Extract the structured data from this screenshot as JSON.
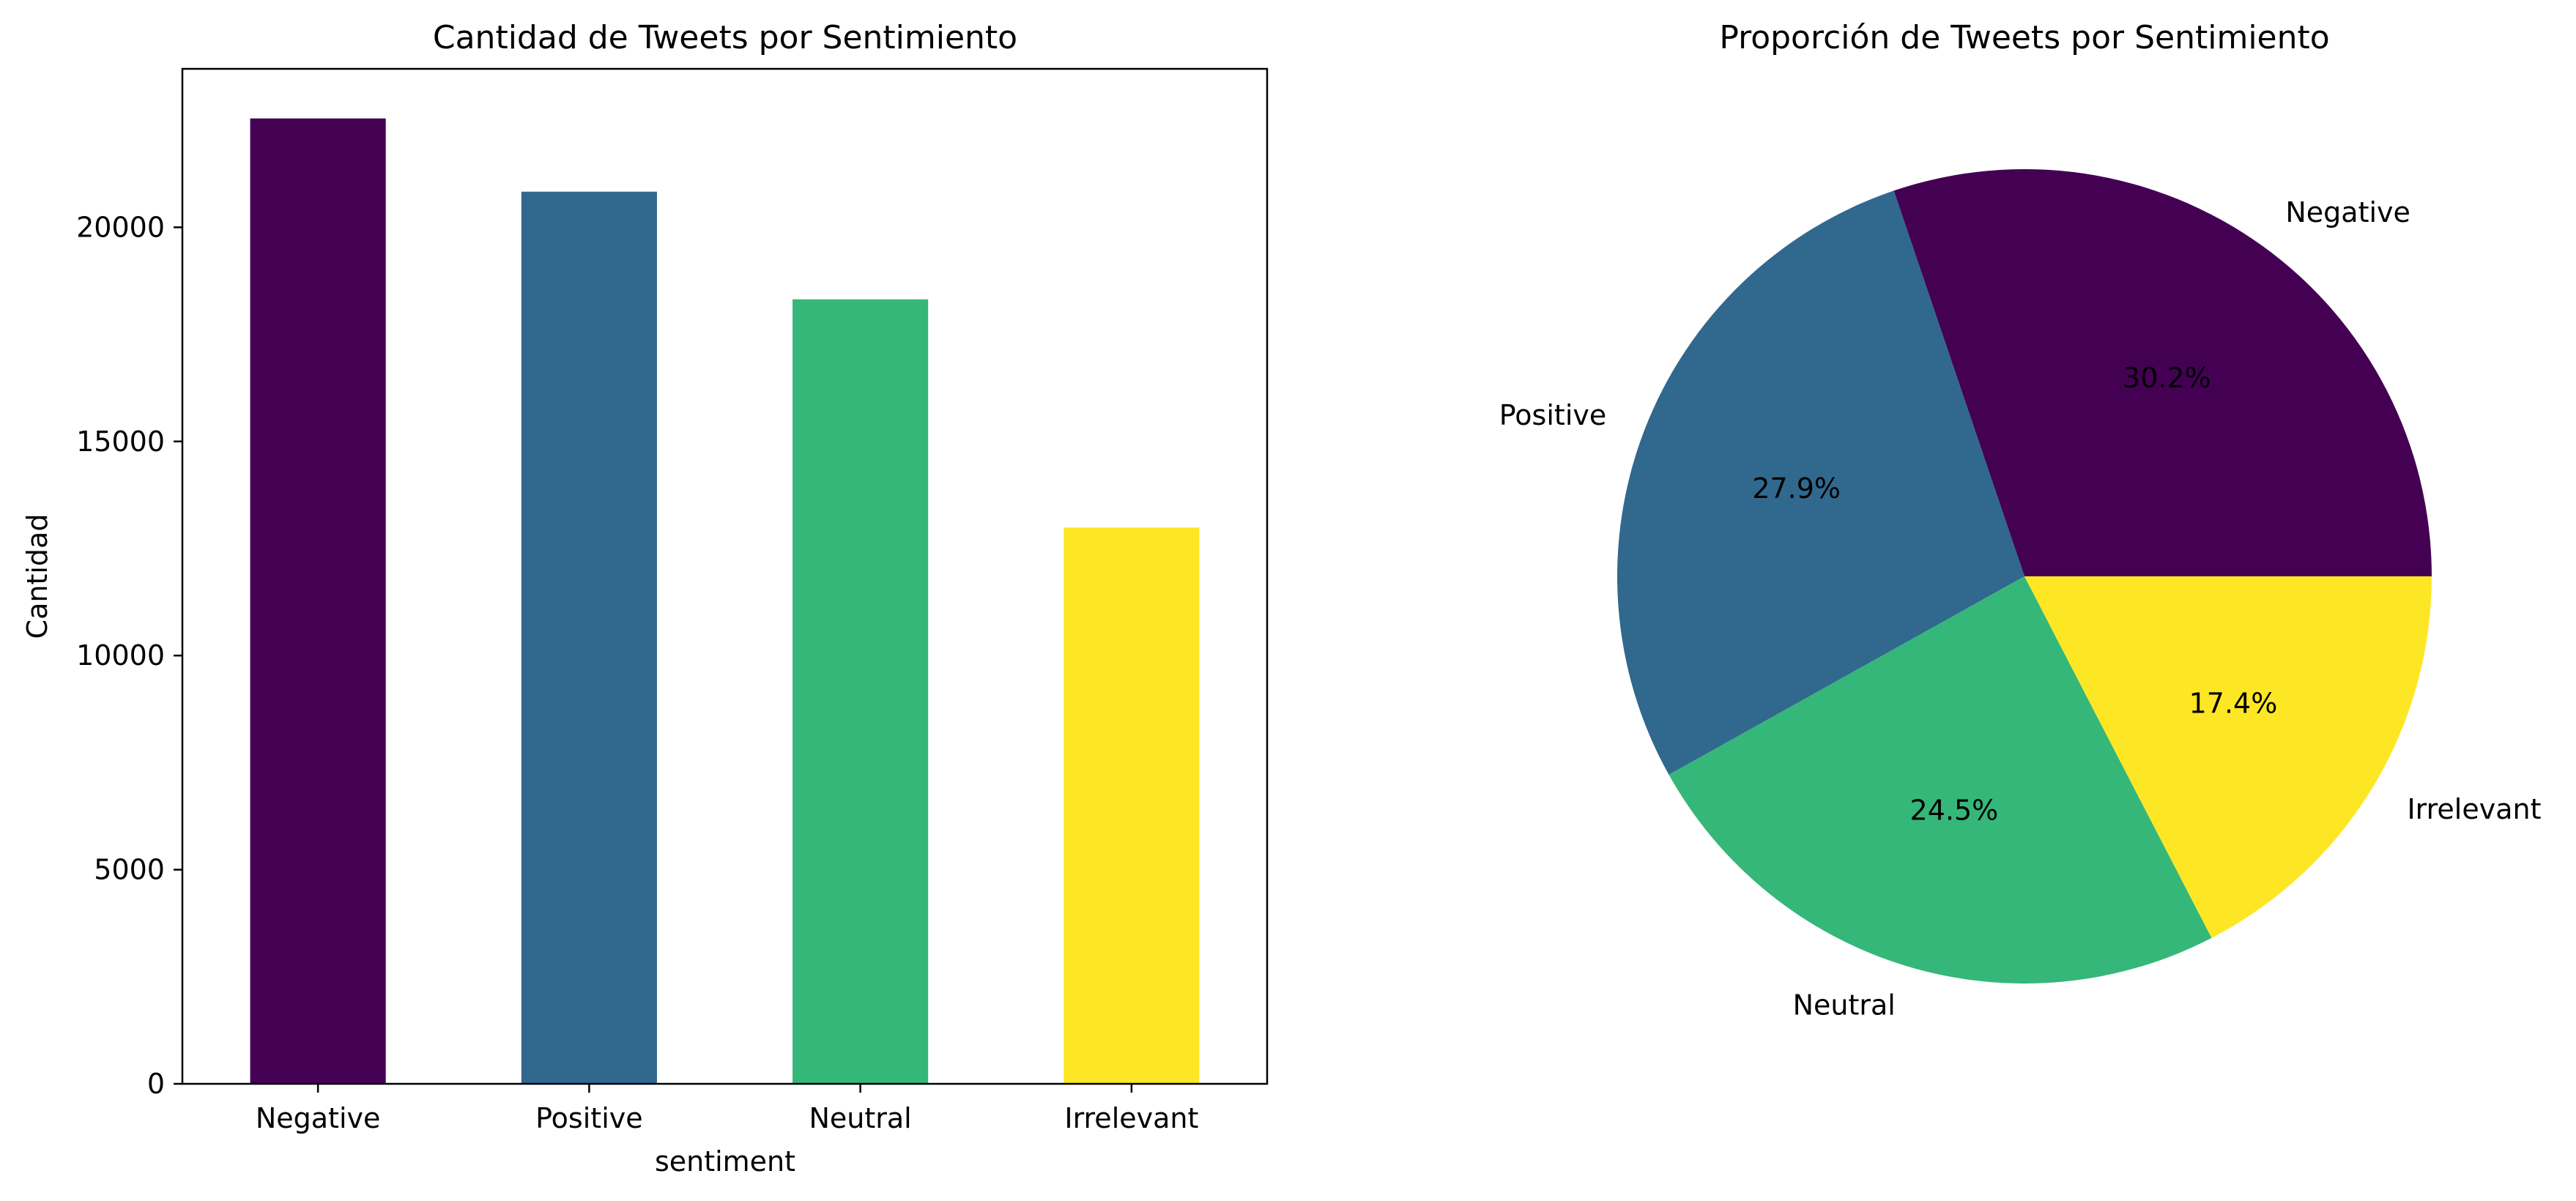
{
  "chart_data": [
    {
      "type": "bar",
      "title": "Cantidad de Tweets por Sentimiento",
      "xlabel": "sentiment",
      "ylabel": "Cantidad",
      "categories": [
        "Negative",
        "Positive",
        "Neutral",
        "Irrelevant"
      ],
      "values": [
        22542,
        20832,
        18318,
        12990
      ],
      "colors": [
        "#440154",
        "#31688e",
        "#35b779",
        "#fde725"
      ],
      "ylim": [
        0,
        23700
      ],
      "yticks": [
        0,
        5000,
        10000,
        15000,
        20000
      ],
      "grid": false,
      "legend": "none"
    },
    {
      "type": "pie",
      "title": "Proporción de Tweets por Sentimiento",
      "labels": [
        "Negative",
        "Positive",
        "Neutral",
        "Irrelevant"
      ],
      "values": [
        30.2,
        27.9,
        24.5,
        17.4
      ],
      "pct_labels": [
        "30.2%",
        "27.9%",
        "24.5%",
        "17.4%"
      ],
      "colors": [
        "#440154",
        "#31688e",
        "#35b779",
        "#fde725"
      ],
      "start_angle": 0,
      "direction": "counterclockwise"
    }
  ]
}
